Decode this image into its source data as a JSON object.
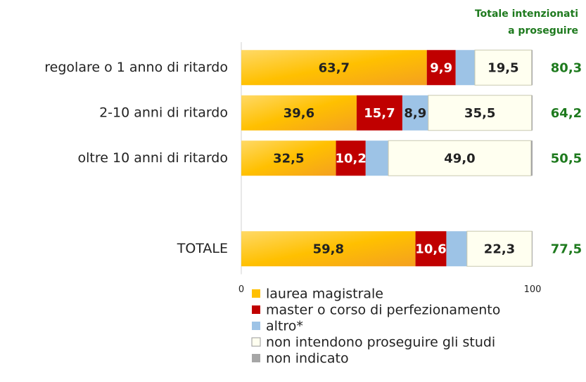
{
  "chart_data": {
    "type": "stacked_barh",
    "categories": [
      "regolare o 1 anno di ritardo",
      "2-10 anni di ritardo",
      "oltre 10 anni di ritardo",
      null,
      "TOTALE"
    ],
    "series": [
      {
        "name": "laurea magistrale",
        "color": "#ffc000",
        "values": [
          63.7,
          39.6,
          32.5,
          null,
          59.8
        ],
        "value_labels": [
          "63,7",
          "39,6",
          "32,5",
          null,
          "59,8"
        ]
      },
      {
        "name": "master o corso di perfezionamento",
        "color": "#c00000",
        "values": [
          9.9,
          15.7,
          10.2,
          null,
          10.6
        ],
        "value_labels": [
          "9,9",
          "15,7",
          "10,2",
          null,
          "10,6"
        ]
      },
      {
        "name": "altro*",
        "color": "#9dc3e6",
        "values": [
          6.6,
          8.9,
          7.8,
          null,
          7.1
        ],
        "value_labels": [
          null,
          "8,9",
          null,
          null,
          null
        ]
      },
      {
        "name": "non intendono proseguire gli studi",
        "color": "#fffff0",
        "values": [
          19.5,
          35.5,
          49.0,
          null,
          22.3
        ],
        "value_labels": [
          "19,5",
          "35,5",
          "49,0",
          null,
          "22,3"
        ]
      },
      {
        "name": "non indicato",
        "color": "#a6a6a6",
        "values": [
          0.3,
          0.3,
          0.5,
          null,
          0.2
        ],
        "value_labels": [
          null,
          null,
          null,
          null,
          null
        ]
      }
    ],
    "totals": {
      "title": [
        "Totale intenzionati",
        "a proseguire"
      ],
      "color": "#1e7a1e",
      "values": [
        80.3,
        64.2,
        50.5,
        null,
        77.5
      ],
      "value_labels": [
        "80,3",
        "64,2",
        "50,5",
        null,
        "77,5"
      ]
    },
    "xlim": [
      0,
      100
    ],
    "xticks": [
      0,
      100
    ],
    "grid": false
  }
}
